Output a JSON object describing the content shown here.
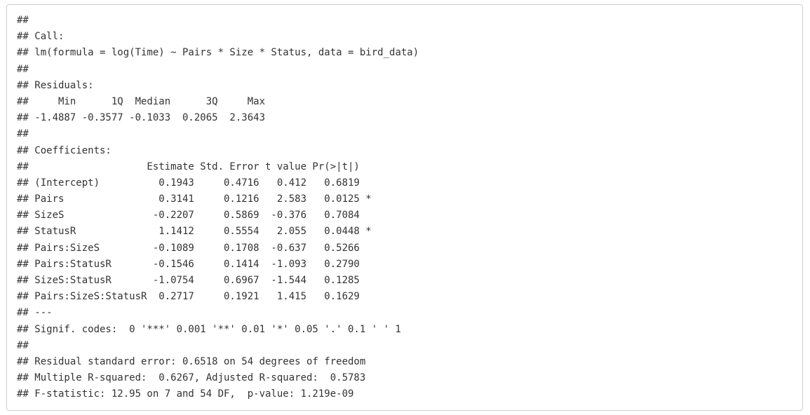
{
  "output": {
    "lines": [
      "##",
      "## Call:",
      "## lm(formula = log(Time) ~ Pairs * Size * Status, data = bird_data)",
      "##",
      "## Residuals:",
      "##     Min      1Q  Median      3Q     Max",
      "## -1.4887 -0.3577 -0.1033  0.2065  2.3643",
      "##",
      "## Coefficients:",
      "##                    Estimate Std. Error t value Pr(>|t|)",
      "## (Intercept)          0.1943     0.4716   0.412   0.6819",
      "## Pairs                0.3141     0.1216   2.583   0.0125 *",
      "## SizeS               -0.2207     0.5869  -0.376   0.7084",
      "## StatusR              1.1412     0.5554   2.055   0.0448 *",
      "## Pairs:SizeS         -0.1089     0.1708  -0.637   0.5266",
      "## Pairs:StatusR       -0.1546     0.1414  -1.093   0.2790",
      "## SizeS:StatusR       -1.0754     0.6967  -1.544   0.1285",
      "## Pairs:SizeS:StatusR  0.2717     0.1921   1.415   0.1629",
      "## ---",
      "## Signif. codes:  0 '***' 0.001 '**' 0.01 '*' 0.05 '.' 0.1 ' ' 1",
      "##",
      "## Residual standard error: 0.6518 on 54 degrees of freedom",
      "## Multiple R-squared:  0.6267, Adjusted R-squared:  0.5783",
      "## F-statistic: 12.95 on 7 and 54 DF,  p-value: 1.219e-09"
    ]
  }
}
